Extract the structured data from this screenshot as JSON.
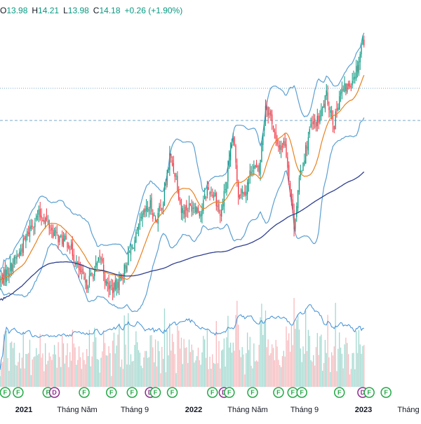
{
  "legend": {
    "open_prefix": "O",
    "open": "13.98",
    "high_prefix": "H",
    "high": "14.21",
    "low_prefix": "L",
    "low": "13.98",
    "close_prefix": "C",
    "close": "14.18",
    "change": "+0.26 (+1.90%)"
  },
  "colors": {
    "up": "#089981",
    "down": "#f23645",
    "volume_up": "#9fd8cf",
    "volume_down": "#f7b9bd",
    "ma_short": "#e8811f",
    "ma_long": "#2f3f8f",
    "bands": "#5b9fd1",
    "volume_ma": "#3d8fd6",
    "dividend": "#8e2a8e",
    "financial": "#22a845",
    "guide_line": "#7aa9c9"
  },
  "chart_data": {
    "type": "candlestick",
    "title": "",
    "xlabel": "",
    "ylabel": "",
    "x_ticks": [
      {
        "label": "2021",
        "year": true
      },
      {
        "label": "Tháng Năm",
        "year": false
      },
      {
        "label": "Tháng 9",
        "year": false
      },
      {
        "label": "2022",
        "year": true
      },
      {
        "label": "Tháng Năm",
        "year": false
      },
      {
        "label": "Tháng 9",
        "year": false
      },
      {
        "label": "2023",
        "year": true
      },
      {
        "label": "Tháng",
        "year": false
      }
    ],
    "x_range_months": [
      -3,
      29.5
    ],
    "y_range": [
      0,
      100
    ],
    "price_keypoints": [
      [
        -3,
        24
      ],
      [
        -2.3,
        30
      ],
      [
        -1.5,
        38
      ],
      [
        -0.6,
        52
      ],
      [
        0,
        57
      ],
      [
        0.5,
        55
      ],
      [
        1,
        49
      ],
      [
        1.6,
        45
      ],
      [
        2.3,
        43
      ],
      [
        3.0,
        31
      ],
      [
        3.6,
        22
      ],
      [
        4.2,
        28
      ],
      [
        4.8,
        36
      ],
      [
        5.2,
        22
      ],
      [
        5.8,
        20
      ],
      [
        6.5,
        28
      ],
      [
        7.0,
        38
      ],
      [
        7.4,
        44
      ],
      [
        8.0,
        56
      ],
      [
        8.6,
        62
      ],
      [
        9.0,
        54
      ],
      [
        9.6,
        64
      ],
      [
        10.1,
        86
      ],
      [
        10.6,
        76
      ],
      [
        11.0,
        59
      ],
      [
        11.6,
        61
      ],
      [
        12.0,
        62
      ],
      [
        12.5,
        58
      ],
      [
        13.0,
        70
      ],
      [
        13.6,
        67
      ],
      [
        14.0,
        56
      ],
      [
        14.5,
        74
      ],
      [
        15.0,
        96
      ],
      [
        15.4,
        68
      ],
      [
        16.0,
        70
      ],
      [
        16.5,
        82
      ],
      [
        17.0,
        78
      ],
      [
        17.5,
        112
      ],
      [
        18.0,
        104
      ],
      [
        18.4,
        90
      ],
      [
        19.0,
        93
      ],
      [
        19.3,
        76
      ],
      [
        19.7,
        52
      ],
      [
        20.2,
        78
      ],
      [
        21.0,
        101
      ],
      [
        21.6,
        104
      ],
      [
        22.2,
        116
      ],
      [
        22.8,
        102
      ],
      [
        23.2,
        117
      ],
      [
        24.0,
        122
      ],
      [
        24.6,
        131
      ],
      [
        25.0,
        144
      ]
    ],
    "bollinger_offset": 16,
    "volume_series_note": "",
    "horizontal_lines": [
      {
        "style": "dotted",
        "value": 120
      },
      {
        "style": "dashed",
        "value": 104
      }
    ],
    "events": [
      {
        "type": "F",
        "month": -2.6
      },
      {
        "type": "F",
        "month": -1.6
      },
      {
        "type": "F",
        "month": 0.7
      },
      {
        "type": "D",
        "month": 1.2
      },
      {
        "type": "F",
        "month": 3.5
      },
      {
        "type": "F",
        "month": 5.6
      },
      {
        "type": "F",
        "month": 7.2
      },
      {
        "type": "D",
        "month": 8.6
      },
      {
        "type": "F",
        "month": 9.0
      },
      {
        "type": "F",
        "month": 10.3
      },
      {
        "type": "F",
        "month": 13.4
      },
      {
        "type": "D",
        "month": 14.3
      },
      {
        "type": "F",
        "month": 14.7
      },
      {
        "type": "F",
        "month": 16.5
      },
      {
        "type": "F",
        "month": 18.5
      },
      {
        "type": "F",
        "month": 19.6
      },
      {
        "type": "F",
        "month": 20.3
      },
      {
        "type": "F",
        "month": 23.2
      },
      {
        "type": "D",
        "month": 25.0
      },
      {
        "type": "F",
        "month": 25.5
      },
      {
        "type": "F",
        "month": 26.8
      }
    ]
  }
}
